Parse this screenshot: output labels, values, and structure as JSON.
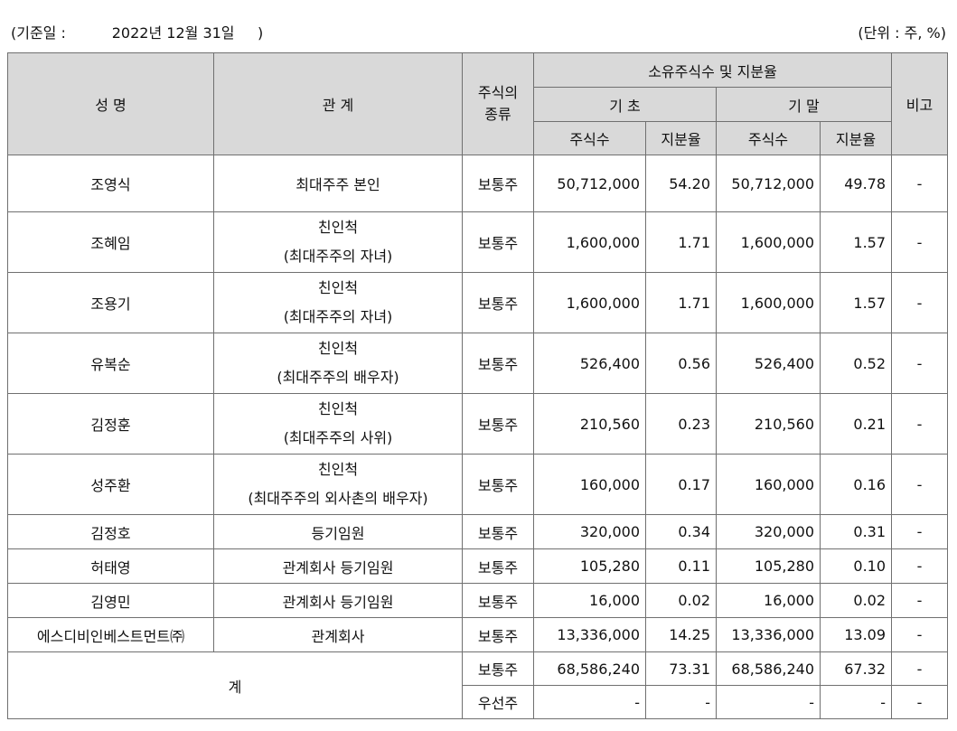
{
  "header": {
    "basis_prefix": "(기준일 :",
    "basis_date": "2022년 12월 31일",
    "basis_suffix": ")",
    "unit": "(단위 : 주, %)"
  },
  "columns": {
    "name": "성 명",
    "relation": "관 계",
    "stock_type_line1": "주식의",
    "stock_type_line2": "종류",
    "holdings_group": "소유주식수 및 지분율",
    "period_start": "기 초",
    "period_end": "기 말",
    "shares": "주식수",
    "ratio": "지분율",
    "remarks": "비고"
  },
  "rows": [
    {
      "name": "조영식",
      "relation": [
        "최대주주 본인"
      ],
      "type": "보통주",
      "start_shares": "50,712,000",
      "start_ratio": "54.20",
      "end_shares": "50,712,000",
      "end_ratio": "49.78",
      "remarks": "-"
    },
    {
      "name": "조혜임",
      "relation": [
        "친인척",
        "(최대주주의 자녀)"
      ],
      "type": "보통주",
      "start_shares": "1,600,000",
      "start_ratio": "1.71",
      "end_shares": "1,600,000",
      "end_ratio": "1.57",
      "remarks": "-"
    },
    {
      "name": "조용기",
      "relation": [
        "친인척",
        "(최대주주의 자녀)"
      ],
      "type": "보통주",
      "start_shares": "1,600,000",
      "start_ratio": "1.71",
      "end_shares": "1,600,000",
      "end_ratio": "1.57",
      "remarks": "-"
    },
    {
      "name": "유복순",
      "relation": [
        "친인척",
        "(최대주주의 배우자)"
      ],
      "type": "보통주",
      "start_shares": "526,400",
      "start_ratio": "0.56",
      "end_shares": "526,400",
      "end_ratio": "0.52",
      "remarks": "-"
    },
    {
      "name": "김정훈",
      "relation": [
        "친인척",
        "(최대주주의 사위)"
      ],
      "type": "보통주",
      "start_shares": "210,560",
      "start_ratio": "0.23",
      "end_shares": "210,560",
      "end_ratio": "0.21",
      "remarks": "-"
    },
    {
      "name": "성주환",
      "relation": [
        "친인척",
        "(최대주주의 외사촌의 배우자)"
      ],
      "type": "보통주",
      "start_shares": "160,000",
      "start_ratio": "0.17",
      "end_shares": "160,000",
      "end_ratio": "0.16",
      "remarks": "-"
    },
    {
      "name": "김정호",
      "relation": [
        "등기임원"
      ],
      "type": "보통주",
      "start_shares": "320,000",
      "start_ratio": "0.34",
      "end_shares": "320,000",
      "end_ratio": "0.31",
      "remarks": "-"
    },
    {
      "name": "허태영",
      "relation": [
        "관계회사 등기임원"
      ],
      "type": "보통주",
      "start_shares": "105,280",
      "start_ratio": "0.11",
      "end_shares": "105,280",
      "end_ratio": "0.10",
      "remarks": "-"
    },
    {
      "name": "김영민",
      "relation": [
        "관계회사 등기임원"
      ],
      "type": "보통주",
      "start_shares": "16,000",
      "start_ratio": "0.02",
      "end_shares": "16,000",
      "end_ratio": "0.02",
      "remarks": "-"
    },
    {
      "name": "에스디비인베스트먼트㈜",
      "relation": [
        "관계회사"
      ],
      "type": "보통주",
      "start_shares": "13,336,000",
      "start_ratio": "14.25",
      "end_shares": "13,336,000",
      "end_ratio": "13.09",
      "remarks": "-"
    }
  ],
  "total": {
    "label": "계",
    "rows": [
      {
        "type": "보통주",
        "start_shares": "68,586,240",
        "start_ratio": "73.31",
        "end_shares": "68,586,240",
        "end_ratio": "67.32",
        "remarks": "-"
      },
      {
        "type": "우선주",
        "start_shares": "-",
        "start_ratio": "-",
        "end_shares": "-",
        "end_ratio": "-",
        "remarks": "-"
      }
    ]
  }
}
